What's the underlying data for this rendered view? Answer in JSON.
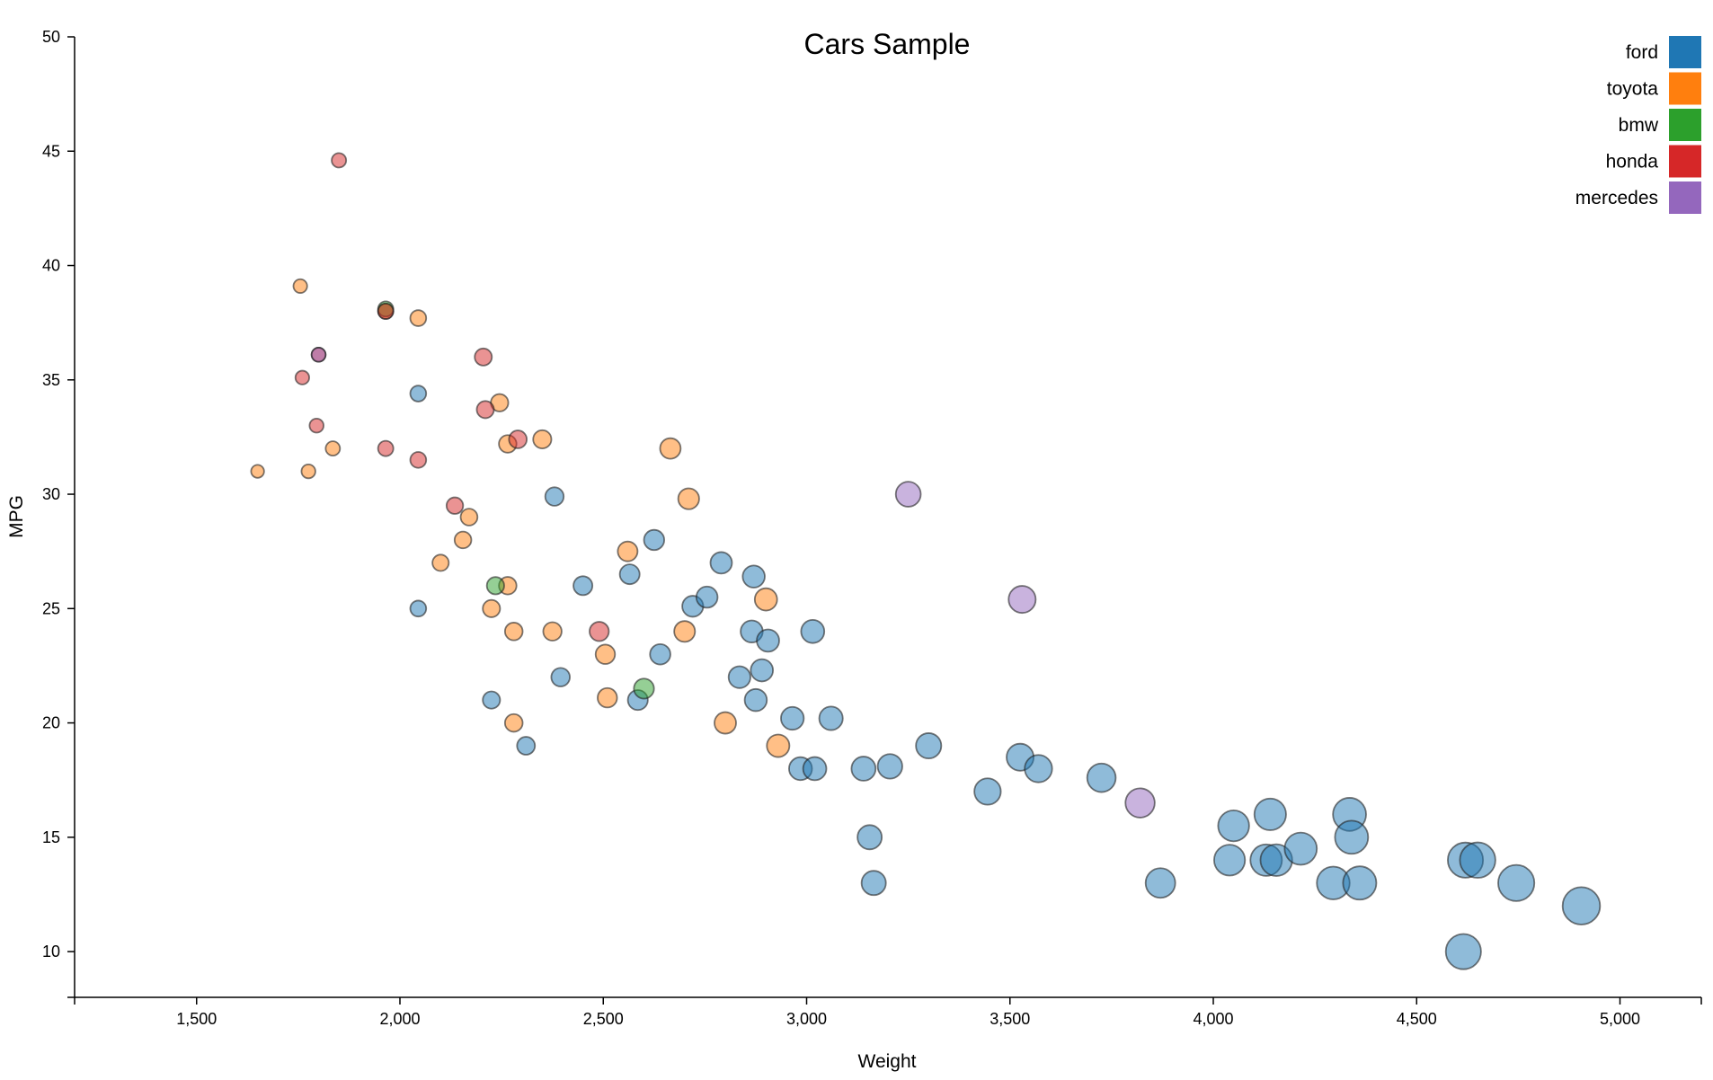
{
  "chart_data": {
    "type": "scatter",
    "title": "Cars Sample",
    "xlabel": "Weight",
    "ylabel": "MPG",
    "xlim": [
      1200,
      5200
    ],
    "ylim": [
      8,
      50
    ],
    "xticks": [
      1500,
      2000,
      2500,
      3000,
      3500,
      4000,
      4500,
      5000
    ],
    "xtick_labels": [
      "1,500",
      "2,000",
      "2,500",
      "3,000",
      "3,500",
      "4,000",
      "4,500",
      "5,000"
    ],
    "yticks": [
      10,
      15,
      20,
      25,
      30,
      35,
      40,
      45,
      50
    ],
    "ytick_labels": [
      "10",
      "15",
      "20",
      "25",
      "30",
      "35",
      "40",
      "45",
      "50"
    ],
    "legend_position": "top-right",
    "grid": false,
    "series": [
      {
        "name": "ford",
        "color": "#1f77b4",
        "points": [
          [
            2045,
            34.4
          ],
          [
            2045,
            25.0
          ],
          [
            2225,
            21.0
          ],
          [
            2310,
            19.0
          ],
          [
            2380,
            29.9
          ],
          [
            2395,
            22.0
          ],
          [
            2450,
            26.0
          ],
          [
            2565,
            26.5
          ],
          [
            2585,
            21.0
          ],
          [
            2625,
            28.0
          ],
          [
            2640,
            23.0
          ],
          [
            2720,
            25.1
          ],
          [
            2755,
            25.5
          ],
          [
            2790,
            27.0
          ],
          [
            2835,
            22.0
          ],
          [
            2865,
            24.0
          ],
          [
            2870,
            26.4
          ],
          [
            2875,
            21.0
          ],
          [
            2890,
            22.3
          ],
          [
            2905,
            23.6
          ],
          [
            2965,
            20.2
          ],
          [
            2985,
            18.0
          ],
          [
            3015,
            24.0
          ],
          [
            3020,
            18.0
          ],
          [
            3060,
            20.2
          ],
          [
            3140,
            18.0
          ],
          [
            3155,
            15.0
          ],
          [
            3165,
            13.0
          ],
          [
            3205,
            18.1
          ],
          [
            3300,
            19.0
          ],
          [
            3445,
            17.0
          ],
          [
            3525,
            18.5
          ],
          [
            3570,
            18.0
          ],
          [
            3725,
            17.6
          ],
          [
            3870,
            13.0
          ],
          [
            4040,
            14.0
          ],
          [
            4050,
            15.5
          ],
          [
            4130,
            14.0
          ],
          [
            4140,
            16.0
          ],
          [
            4155,
            14.0
          ],
          [
            4215,
            14.5
          ],
          [
            4295,
            13.0
          ],
          [
            4335,
            16.0
          ],
          [
            4340,
            15.0
          ],
          [
            4360,
            13.0
          ],
          [
            4615,
            10.0
          ],
          [
            4620,
            14.0
          ],
          [
            4650,
            14.0
          ],
          [
            4745,
            13.0
          ],
          [
            4905,
            12.0
          ]
        ]
      },
      {
        "name": "toyota",
        "color": "#ff7f0e",
        "points": [
          [
            1650,
            31.0
          ],
          [
            1755,
            39.1
          ],
          [
            1775,
            31.0
          ],
          [
            1835,
            32.0
          ],
          [
            1965,
            38.0
          ],
          [
            2045,
            37.7
          ],
          [
            2100,
            27.0
          ],
          [
            2155,
            28.0
          ],
          [
            2170,
            29.0
          ],
          [
            2225,
            25.0
          ],
          [
            2245,
            34.0
          ],
          [
            2265,
            32.2
          ],
          [
            2265,
            26.0
          ],
          [
            2280,
            24.0
          ],
          [
            2280,
            20.0
          ],
          [
            2350,
            32.4
          ],
          [
            2375,
            24.0
          ],
          [
            2505,
            23.0
          ],
          [
            2510,
            21.1
          ],
          [
            2560,
            27.5
          ],
          [
            2665,
            32.0
          ],
          [
            2700,
            24.0
          ],
          [
            2710,
            29.8
          ],
          [
            2800,
            20.0
          ],
          [
            2900,
            25.4
          ],
          [
            2930,
            19.0
          ]
        ]
      },
      {
        "name": "bmw",
        "color": "#2ca02c",
        "points": [
          [
            1965,
            38.1
          ],
          [
            2235,
            26.0
          ],
          [
            2600,
            21.5
          ]
        ]
      },
      {
        "name": "honda",
        "color": "#d62728",
        "points": [
          [
            1760,
            35.1
          ],
          [
            1795,
            33.0
          ],
          [
            1800,
            36.1
          ],
          [
            1850,
            44.6
          ],
          [
            1965,
            38.0
          ],
          [
            1965,
            32.0
          ],
          [
            2045,
            31.5
          ],
          [
            2135,
            29.5
          ],
          [
            2205,
            36.0
          ],
          [
            2210,
            33.7
          ],
          [
            2290,
            32.4
          ],
          [
            2490,
            24.0
          ]
        ]
      },
      {
        "name": "mercedes",
        "color": "#9467bd",
        "points": [
          [
            1800,
            36.1
          ],
          [
            3250,
            30.0
          ],
          [
            3530,
            25.4
          ],
          [
            3820,
            16.5
          ]
        ]
      }
    ]
  }
}
